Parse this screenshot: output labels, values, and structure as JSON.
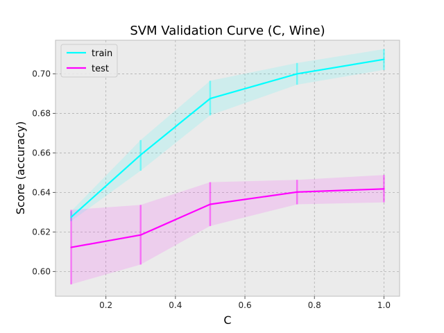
{
  "chart_data": {
    "type": "line",
    "title": "SVM Validation Curve (C, Wine)",
    "xlabel": "C",
    "ylabel": "Score (accuracy)",
    "x": [
      0.1,
      0.3,
      0.5,
      0.75,
      1.0
    ],
    "xlim": [
      0.055,
      1.045
    ],
    "ylim": [
      0.5875,
      0.717
    ],
    "x_ticks": [
      0.2,
      0.4,
      0.6,
      0.8,
      1.0
    ],
    "x_tick_labels": [
      "0.2",
      "0.4",
      "0.6",
      "0.8",
      "1.0"
    ],
    "y_ticks": [
      0.6,
      0.62,
      0.64,
      0.66,
      0.68,
      0.7
    ],
    "y_tick_labels": [
      "0.60",
      "0.62",
      "0.64",
      "0.66",
      "0.68",
      "0.70"
    ],
    "grid": true,
    "legend_position": "top-left",
    "background_color": "#ebebeb",
    "series": [
      {
        "name": "train",
        "color": "#00ffff",
        "values": [
          0.6275,
          0.659,
          0.6875,
          0.7,
          0.7073
        ],
        "lower": [
          0.6255,
          0.651,
          0.679,
          0.6945,
          0.702
        ],
        "upper": [
          0.6305,
          0.6665,
          0.6965,
          0.7055,
          0.7125
        ]
      },
      {
        "name": "test",
        "color": "#ff00ff",
        "values": [
          0.6122,
          0.6185,
          0.634,
          0.6402,
          0.6418
        ],
        "lower": [
          0.5935,
          0.6035,
          0.623,
          0.634,
          0.635
        ],
        "upper": [
          0.6312,
          0.6337,
          0.6452,
          0.6464,
          0.6488
        ]
      }
    ]
  }
}
